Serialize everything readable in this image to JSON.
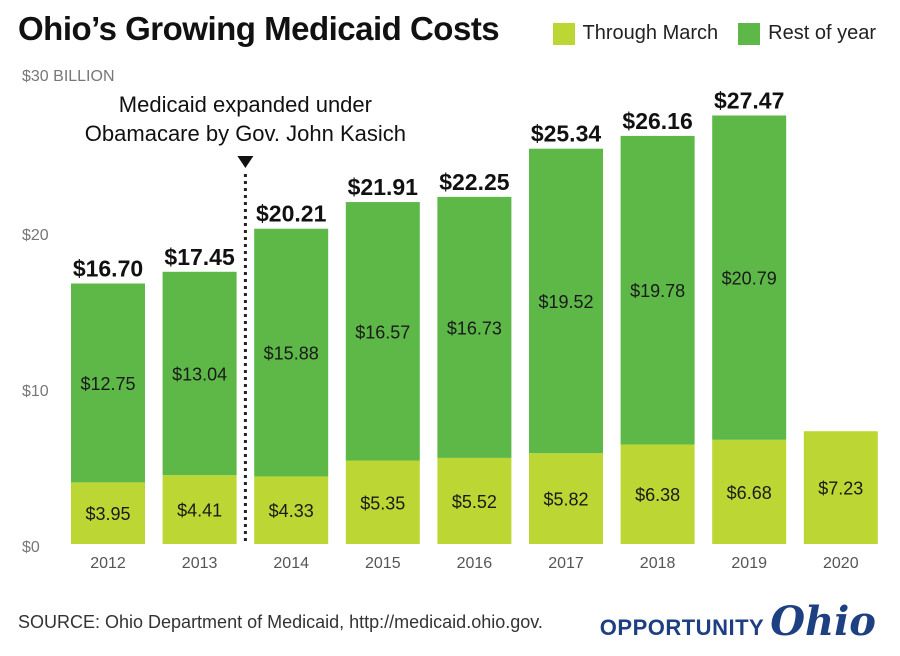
{
  "title": "Ohio’s Growing Medicaid Costs",
  "legend": [
    {
      "label": "Through March",
      "color": "#bcd733"
    },
    {
      "label": "Rest of year",
      "color": "#5db848"
    }
  ],
  "annotation": "Medicaid expanded under\nObamacare by Gov. John Kasich",
  "source": "SOURCE: Ohio Department of Medicaid, http://medicaid.ohio.gov.",
  "logo": {
    "word": "OPPORTUNITY",
    "script": "Ohio"
  },
  "chart_data": {
    "type": "bar",
    "stacked": true,
    "categories": [
      "2012",
      "2013",
      "2014",
      "2015",
      "2016",
      "2017",
      "2018",
      "2019",
      "2020"
    ],
    "series": [
      {
        "name": "Through March",
        "color": "#bcd733",
        "values": [
          3.95,
          4.41,
          4.33,
          5.35,
          5.52,
          5.82,
          6.38,
          6.68,
          7.23
        ],
        "labels": [
          "$3.95",
          "$4.41",
          "$4.33",
          "$5.35",
          "$5.52",
          "$5.82",
          "$6.38",
          "$6.68",
          "$7.23"
        ]
      },
      {
        "name": "Rest of year",
        "color": "#5db848",
        "values": [
          12.75,
          13.04,
          15.88,
          16.57,
          16.73,
          19.52,
          19.78,
          20.79,
          null
        ],
        "labels": [
          "$12.75",
          "$13.04",
          "$15.88",
          "$16.57",
          "$16.73",
          "$19.52",
          "$19.78",
          "$20.79",
          ""
        ]
      }
    ],
    "totals": [
      "$16.70",
      "$17.45",
      "$20.21",
      "$21.91",
      "$22.25",
      "$25.34",
      "$26.16",
      "$27.47",
      ""
    ],
    "total_values": [
      16.7,
      17.45,
      20.21,
      21.91,
      22.25,
      25.34,
      26.16,
      27.47,
      null
    ],
    "ylim": [
      0,
      30
    ],
    "yticks": [
      0,
      10,
      20,
      30
    ],
    "ytick_labels": [
      "$0",
      "$10",
      "$20",
      "$30 BILLION"
    ],
    "annotation_between": [
      "2013",
      "2014"
    ],
    "grid": false,
    "legend_position": "top-right"
  }
}
